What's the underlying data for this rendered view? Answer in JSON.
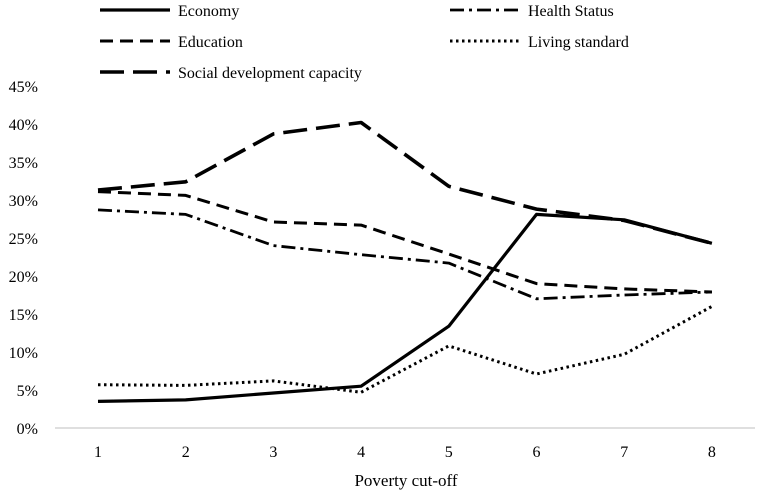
{
  "chart_data": {
    "type": "line",
    "title": "",
    "xlabel": "Poverty cut-off",
    "ylabel": "",
    "x": [
      1,
      2,
      3,
      4,
      5,
      6,
      7,
      8
    ],
    "x_tick_labels": [
      "1",
      "2",
      "3",
      "4",
      "5",
      "6",
      "7",
      "8"
    ],
    "ylim": [
      0,
      0.45
    ],
    "y_tick_values": [
      0,
      0.05,
      0.1,
      0.15,
      0.2,
      0.25,
      0.3,
      0.35,
      0.4,
      0.45
    ],
    "y_tick_labels": [
      "0%",
      "5%",
      "10%",
      "15%",
      "20%",
      "25%",
      "30%",
      "35%",
      "40%",
      "45%"
    ],
    "grid": false,
    "legend_position": "top",
    "series": [
      {
        "name": "Economy",
        "style": "solid",
        "color": "#000000",
        "values": [
          0.035,
          0.037,
          0.046,
          0.055,
          0.134,
          0.281,
          0.274,
          0.243
        ]
      },
      {
        "name": "Health Status",
        "style": "dash-dot",
        "color": "#000000",
        "values": [
          0.287,
          0.281,
          0.24,
          0.228,
          0.217,
          0.17,
          0.175,
          0.179
        ]
      },
      {
        "name": "Education",
        "style": "dash",
        "color": "#000000",
        "values": [
          0.311,
          0.306,
          0.271,
          0.267,
          0.229,
          0.19,
          0.183,
          0.179
        ]
      },
      {
        "name": "Living standard",
        "style": "dot",
        "color": "#000000",
        "values": [
          0.057,
          0.056,
          0.062,
          0.047,
          0.108,
          0.071,
          0.097,
          0.16
        ]
      },
      {
        "name": "Social development capacity",
        "style": "long-dash",
        "color": "#000000",
        "values": [
          0.313,
          0.324,
          0.387,
          0.402,
          0.318,
          0.288,
          0.273,
          0.243
        ]
      }
    ]
  }
}
